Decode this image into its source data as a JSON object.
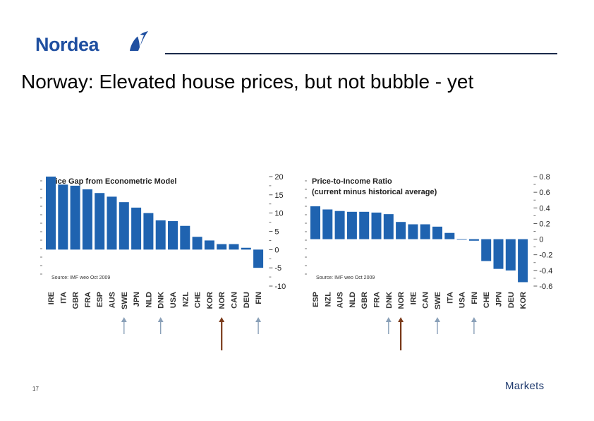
{
  "brand": {
    "logo_text": "Nordea",
    "footer_text": "Markets",
    "color": "#1f4fa0"
  },
  "slide": {
    "title": "Norway: Elevated house prices, but not bubble - yet",
    "page_number": "17"
  },
  "colors": {
    "bar": "#1f63b0",
    "arrow_other": "#8aa0b8",
    "arrow_norway": "#7a3a1a"
  },
  "chart_data": [
    {
      "type": "bar",
      "title": "Price Gap from Econometric Model",
      "source": "Source: IMF weo Oct 2009",
      "categories": [
        "IRE",
        "ITA",
        "GBR",
        "FRA",
        "ESP",
        "AUS",
        "SWE",
        "JPN",
        "NLD",
        "DNK",
        "USA",
        "NZL",
        "CHE",
        "KOR",
        "NOR",
        "CAN",
        "DEU",
        "FIN"
      ],
      "values": [
        20,
        17.8,
        17.5,
        16.5,
        15.5,
        14.5,
        13,
        11.5,
        10,
        8,
        7.8,
        6.5,
        3.5,
        2.5,
        1.5,
        1.5,
        0.5,
        -5
      ],
      "ylim": [
        -10,
        20
      ],
      "yticks": [
        20,
        15,
        10,
        5,
        0,
        -5,
        -10
      ],
      "highlighted": [
        "SWE",
        "DNK",
        "NOR",
        "FIN"
      ],
      "emphasis": "NOR"
    },
    {
      "type": "bar",
      "title": "Price-to-Income Ratio",
      "subtitle": "(current minus historical average)",
      "source": "Source: IMF weo Oct 2009",
      "categories": [
        "ESP",
        "NZL",
        "AUS",
        "NLD",
        "GBR",
        "FRA",
        "DNK",
        "NOR",
        "IRE",
        "CAN",
        "SWE",
        "ITA",
        "USA",
        "FIN",
        "CHE",
        "JPN",
        "DEU",
        "KOR"
      ],
      "values": [
        0.42,
        0.38,
        0.36,
        0.35,
        0.35,
        0.34,
        0.32,
        0.22,
        0.19,
        0.19,
        0.16,
        0.08,
        0.0,
        -0.02,
        -0.28,
        -0.38,
        -0.4,
        -0.55
      ],
      "ylim": [
        -0.6,
        0.8
      ],
      "yticks": [
        0.8,
        0.6,
        0.4,
        0.2,
        0,
        -0.2,
        -0.4,
        -0.6
      ],
      "highlighted": [
        "DNK",
        "NOR",
        "SWE",
        "FIN"
      ],
      "emphasis": "NOR"
    }
  ]
}
